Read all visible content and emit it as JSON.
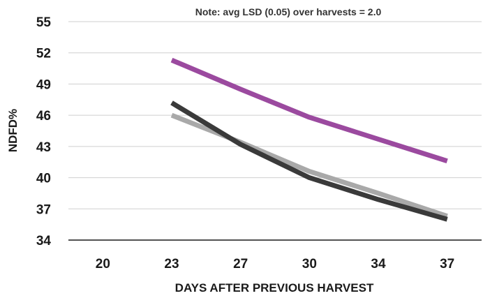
{
  "chart_data": {
    "type": "line",
    "categories": [
      "20",
      "23",
      "27",
      "30",
      "34",
      "37"
    ],
    "ylabel": "NDFD%",
    "xlabel": "DAYS AFTER PREVIOUS HARVEST",
    "annotation": "Note: avg LSD (0.05) over harvests = 2.0",
    "yticks": [
      34,
      37,
      40,
      43,
      46,
      49,
      52,
      55
    ],
    "ylim": [
      34,
      55
    ],
    "grid": true,
    "series": [
      {
        "color": "#9b4a9f",
        "values": [
          null,
          51.3,
          48.5,
          45.8,
          43.7,
          41.6
        ]
      },
      {
        "color": "#a9a9a9",
        "values": [
          null,
          46.0,
          43.4,
          40.6,
          38.5,
          36.3
        ]
      },
      {
        "color": "#3a3a3a",
        "values": [
          null,
          47.2,
          43.2,
          40.0,
          37.9,
          36.0
        ]
      }
    ]
  }
}
